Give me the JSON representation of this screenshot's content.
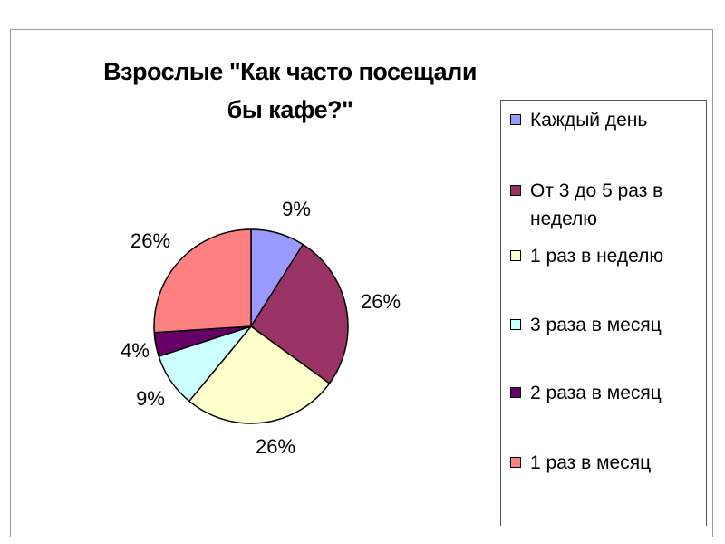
{
  "chart_data": {
    "type": "pie",
    "title": "Взрослые \"Как часто посещали бы кафе?\"",
    "categories": [
      "Каждый день",
      "От 3 до 5 раз в неделю",
      "1 раз в неделю",
      "3 раза в месяц",
      "2 раза в месяц",
      "1 раз в месяц"
    ],
    "values": [
      9,
      26,
      26,
      9,
      4,
      26
    ],
    "value_labels": [
      "9%",
      "26%",
      "26%",
      "9%",
      "4%",
      "26%"
    ],
    "colors": [
      "#9999ff",
      "#993366",
      "#ffffcc",
      "#ccffff",
      "#660066",
      "#ff8080"
    ],
    "legend_position": "right",
    "start_angle": "top, clockwise"
  }
}
